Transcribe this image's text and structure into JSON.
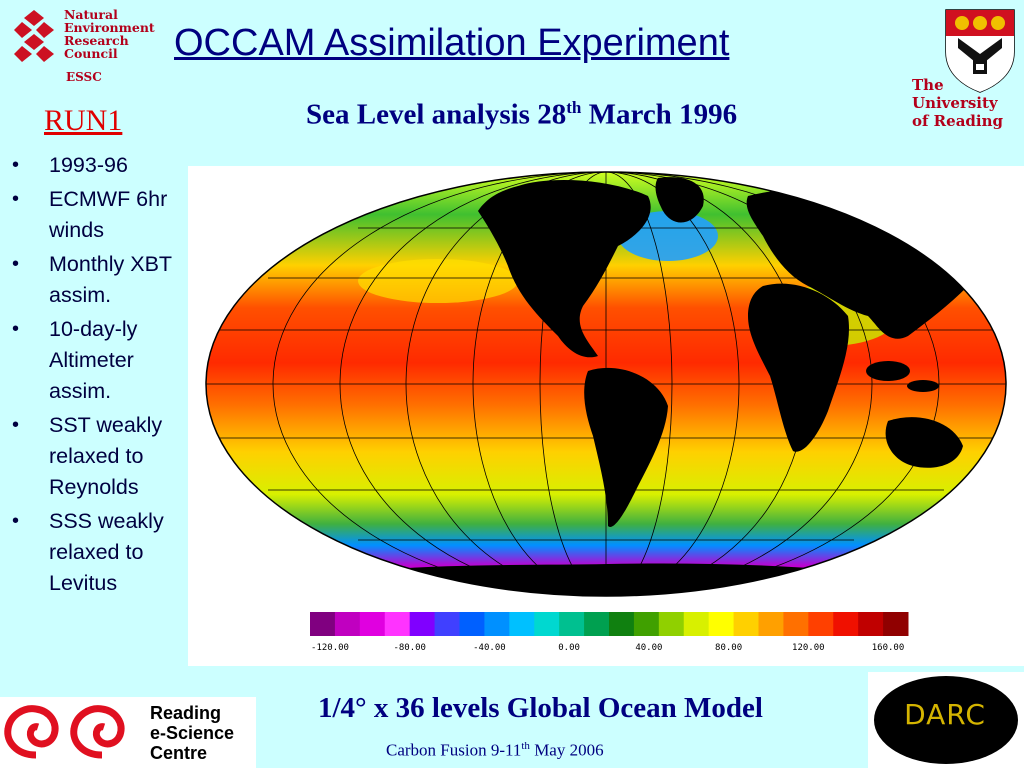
{
  "nerc_logo": {
    "lines": [
      "Natural",
      "Environment",
      "Research",
      "Council"
    ],
    "unit": "ESSC"
  },
  "title": "OCCAM Assimilation Experiment",
  "subtitle": {
    "prefix": "Sea Level analysis 28",
    "superscript": "th",
    "suffix": " March 1996"
  },
  "run_label": "RUN1",
  "university": {
    "lines": [
      "The",
      "University",
      "of Reading"
    ]
  },
  "bullets": [
    "1993-96",
    "ECMWF 6hr winds",
    "Monthly XBT assim.",
    "10-day-ly Altimeter assim.",
    "SST weakly relaxed to Reynolds",
    "SSS weakly relaxed to Levitus"
  ],
  "colorbar": {
    "ticks": [
      "-120.00",
      "-80.00",
      "-40.00",
      "0.00",
      "40.00",
      "80.00",
      "120.00",
      "160.00"
    ],
    "colors": [
      "#800080",
      "#c000c0",
      "#e000e0",
      "#ff33ff",
      "#8000ff",
      "#4040ff",
      "#0060ff",
      "#0090ff",
      "#00c0ff",
      "#00d8d0",
      "#00c090",
      "#00a050",
      "#108010",
      "#40a000",
      "#90d000",
      "#d8f000",
      "#ffff00",
      "#ffd000",
      "#ffa000",
      "#ff7000",
      "#ff4000",
      "#f01000",
      "#c00000",
      "#900000"
    ]
  },
  "model_caption": "1/4° x 36 levels Global Ocean Model",
  "footer": {
    "prefix": "Carbon Fusion 9-11",
    "superscript": "th",
    "suffix": " May 2006"
  },
  "res_logo": {
    "lines": [
      "Reading",
      "e-Science",
      "Centre"
    ]
  },
  "darc_logo": "DARC"
}
